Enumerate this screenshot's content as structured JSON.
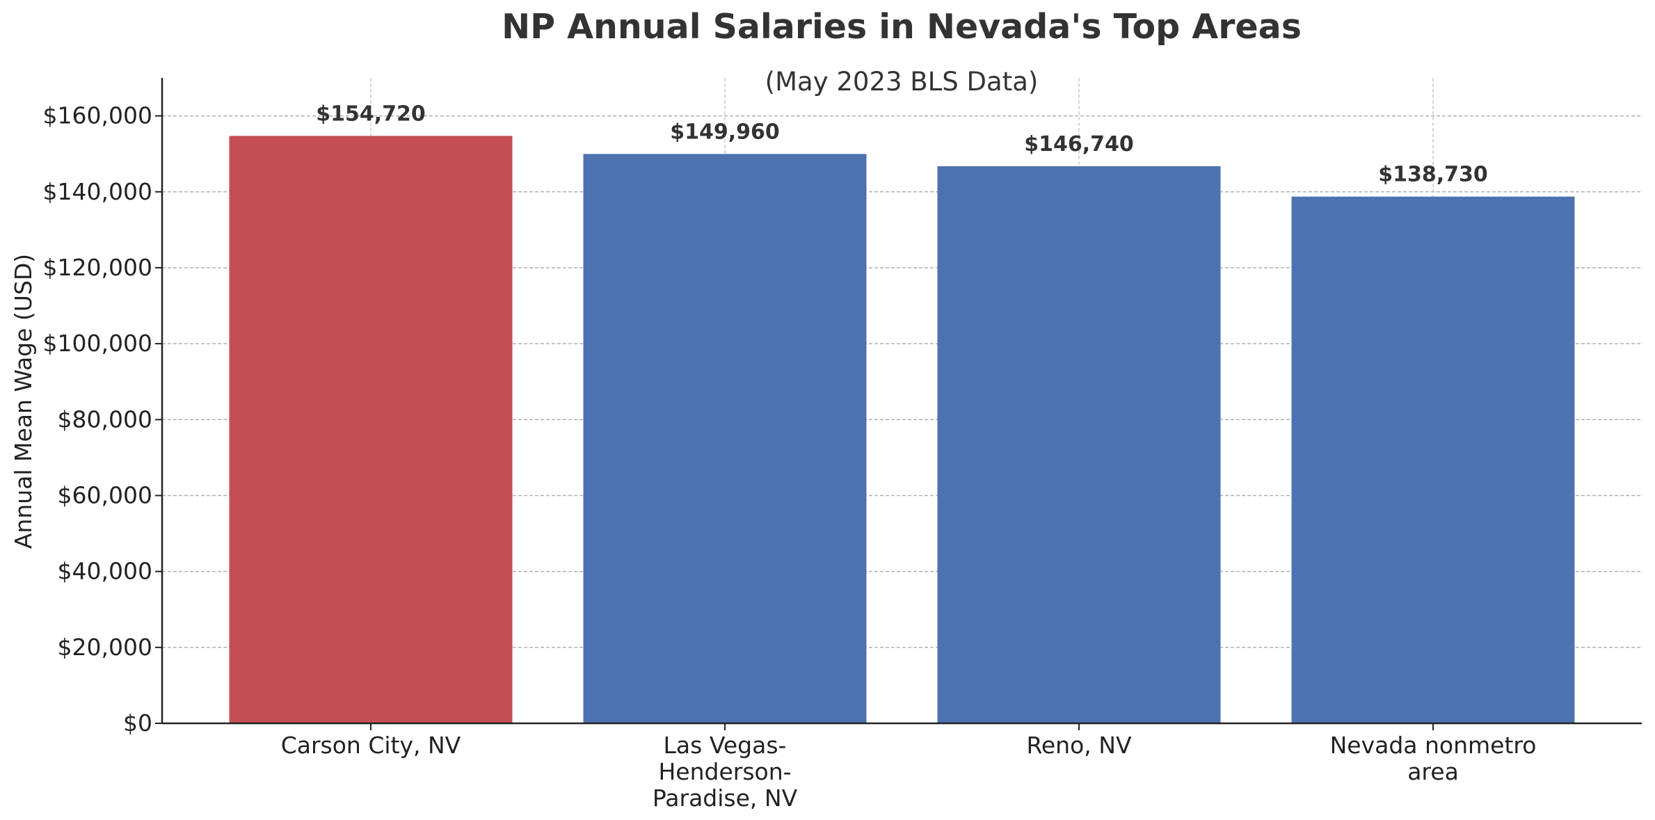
{
  "chart_data": {
    "type": "bar",
    "title": "NP Annual Salaries in Nevada's Top Areas",
    "subtitle": "(May 2023 BLS Data)",
    "xlabel": "",
    "ylabel": "Annual Mean Wage (USD)",
    "categories": [
      [
        "Carson City, NV"
      ],
      [
        "Las Vegas-",
        "Henderson-",
        "Paradise, NV"
      ],
      [
        "Reno, NV"
      ],
      [
        "Nevada nonmetro",
        "area"
      ]
    ],
    "values": [
      154720,
      149960,
      146740,
      138730
    ],
    "value_labels": [
      "$154,720",
      "$149,960",
      "$146,740",
      "$138,730"
    ],
    "bar_colors": [
      "#c44e52",
      "#4c72b0",
      "#4c72b0",
      "#4c72b0"
    ],
    "ylim": [
      0,
      170000
    ],
    "yticks": [
      0,
      20000,
      40000,
      60000,
      80000,
      100000,
      120000,
      140000,
      160000
    ],
    "ytick_labels": [
      "$0",
      "$20,000",
      "$40,000",
      "$60,000",
      "$80,000",
      "$100,000",
      "$120,000",
      "$140,000",
      "$160,000"
    ],
    "grid": true,
    "legend": "none"
  }
}
